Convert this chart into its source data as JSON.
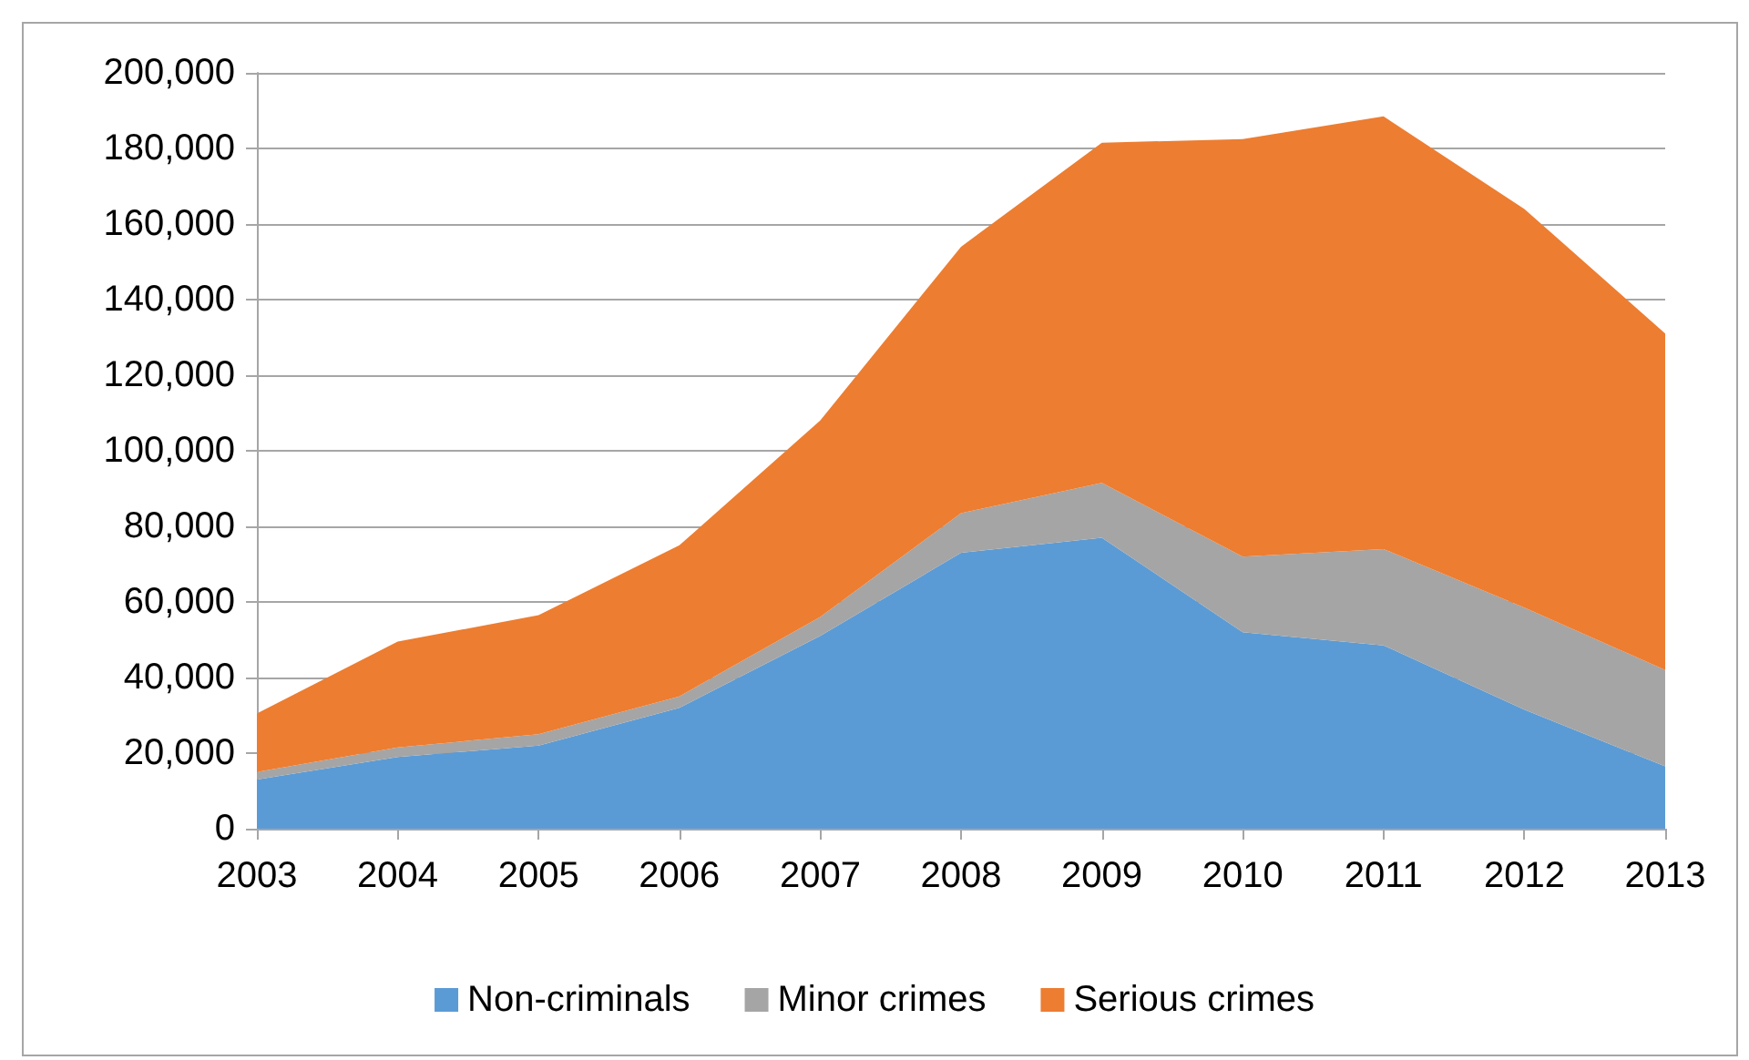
{
  "chart_data": {
    "type": "area",
    "stacked": true,
    "categories": [
      "2003",
      "2004",
      "2005",
      "2006",
      "2007",
      "2008",
      "2009",
      "2010",
      "2011",
      "2012",
      "2013"
    ],
    "series": [
      {
        "name": "Non-criminals",
        "color": "#5b9bd5",
        "values": [
          13000,
          19000,
          22000,
          32000,
          51000,
          73000,
          77000,
          52000,
          48500,
          31500,
          16500
        ]
      },
      {
        "name": "Minor crimes",
        "color": "#a5a5a5",
        "values": [
          2000,
          2500,
          3000,
          3000,
          5000,
          10500,
          14500,
          20000,
          25500,
          27000,
          25500
        ]
      },
      {
        "name": "Serious crimes",
        "color": "#ed7d31",
        "values": [
          15500,
          28000,
          31500,
          40000,
          52000,
          70500,
          90000,
          110500,
          114500,
          105500,
          89000
        ]
      }
    ],
    "ylim": [
      0,
      200000
    ],
    "yticks": [
      0,
      {
        "value": 20000,
        "label": "20,000"
      },
      {
        "value": 40000,
        "label": "40,000"
      },
      {
        "value": 60000,
        "label": "60,000"
      },
      {
        "value": 80000,
        "label": "80,000"
      },
      {
        "value": 100000,
        "label": "100,000"
      },
      {
        "value": 120000,
        "label": "120,000"
      },
      {
        "value": 140000,
        "label": "140,000"
      },
      {
        "value": 160000,
        "label": "160,000"
      },
      {
        "value": 180000,
        "label": "180,000"
      },
      {
        "value": 200000,
        "label": "200,000"
      }
    ],
    "grid": "y",
    "legend": "bottom"
  }
}
